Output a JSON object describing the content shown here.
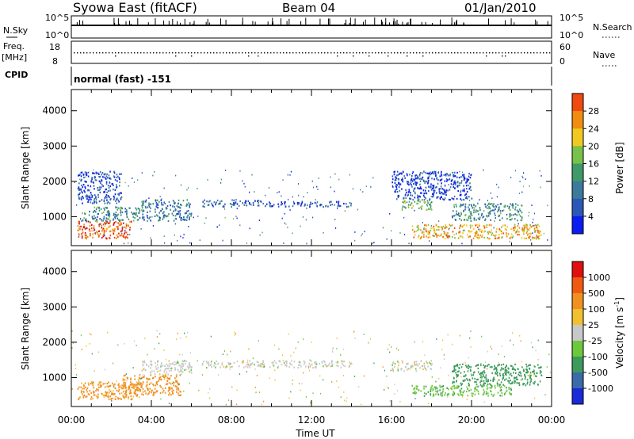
{
  "header": {
    "station": "Syowa East (fitACF)",
    "beam": "Beam 04",
    "date": "01/Jan/2010"
  },
  "strip_panels": {
    "nsky": {
      "label": "N.Sky",
      "tick_top": "10^5",
      "tick_bottom": "10^0"
    },
    "nsearch": {
      "label": "N.Search",
      "tick_top": "10^5",
      "tick_bottom": "10^0"
    },
    "freq": {
      "label_line1": "Freq.",
      "label_line2": "[MHz]",
      "tick_top": "18",
      "tick_bottom": "8",
      "range": [
        8,
        18
      ]
    },
    "nave": {
      "label": "Nave",
      "tick_top": "60",
      "tick_bottom": "0",
      "range": [
        0,
        60
      ]
    },
    "cpid": {
      "label": "CPID",
      "value": "normal (fast) -151"
    }
  },
  "colors": {
    "power_scale": [
      "#0a1cf0",
      "#2a57b8",
      "#3c7a9a",
      "#3f9a6a",
      "#77c24a",
      "#f0c820",
      "#f08c10",
      "#f04a10",
      "#e01010"
    ],
    "velocity_scale": [
      "#e01010",
      "#f05a10",
      "#f09020",
      "#f0c030",
      "#c8c8c8",
      "#6cc83c",
      "#3c9a5a",
      "#3a6aa8",
      "#1a2ad8"
    ],
    "frame": "#000000"
  },
  "chart_data": [
    {
      "type": "heatmap",
      "title": "",
      "xlabel": "Time UT",
      "ylabel": "Slant Range [km]",
      "xlim": [
        "00:00",
        "24:00"
      ],
      "ylim": [
        180,
        4600
      ],
      "x_ticks": [
        "00:00",
        "04:00",
        "08:00",
        "12:00",
        "16:00",
        "20:00",
        "00:00"
      ],
      "y_ticks": [
        1000,
        2000,
        3000,
        4000
      ],
      "colorbar": {
        "label": "Power [dB]",
        "ticks": [
          "4",
          "8",
          "12",
          "16",
          "20",
          "24",
          "28"
        ],
        "range": [
          0,
          30
        ]
      },
      "regions": [
        {
          "t": [
            0.3,
            3.0
          ],
          "r": [
            400,
            900
          ],
          "v": 25
        },
        {
          "t": [
            0.5,
            3.5
          ],
          "r": [
            900,
            1300
          ],
          "v": 10
        },
        {
          "t": [
            3.5,
            6.0
          ],
          "r": [
            900,
            1500
          ],
          "v": 8
        },
        {
          "t": [
            6.5,
            9.5
          ],
          "r": [
            1300,
            1500
          ],
          "v": 6
        },
        {
          "t": [
            9.5,
            14.0
          ],
          "r": [
            1300,
            1450
          ],
          "v": 5
        },
        {
          "t": [
            16.5,
            18.0
          ],
          "r": [
            1200,
            1500
          ],
          "v": 14
        },
        {
          "t": [
            17.0,
            23.5
          ],
          "r": [
            400,
            800
          ],
          "v": 20
        },
        {
          "t": [
            19.0,
            22.5
          ],
          "r": [
            900,
            1400
          ],
          "v": 10
        },
        {
          "t": [
            0.3,
            2.5
          ],
          "r": [
            1400,
            2300
          ],
          "v": 5
        },
        {
          "t": [
            16.0,
            20.0
          ],
          "r": [
            1500,
            2300
          ],
          "v": 4
        }
      ]
    },
    {
      "type": "heatmap",
      "title": "",
      "xlabel": "Time UT",
      "ylabel": "Slant Range [km]",
      "xlim": [
        "00:00",
        "24:00"
      ],
      "ylim": [
        180,
        4600
      ],
      "x_ticks": [
        "00:00",
        "04:00",
        "08:00",
        "12:00",
        "16:00",
        "20:00",
        "00:00"
      ],
      "y_ticks": [
        1000,
        2000,
        3000,
        4000
      ],
      "colorbar": {
        "label": "Velocity [m s^-1]",
        "ticks": [
          "1000",
          "500",
          "100",
          "25",
          "-25",
          "-100",
          "-500",
          "-1000"
        ]
      },
      "regions": [
        {
          "t": [
            0.3,
            3.5
          ],
          "r": [
            400,
            900
          ],
          "v": -150
        },
        {
          "t": [
            2.5,
            5.5
          ],
          "r": [
            500,
            1100
          ],
          "v": -300
        },
        {
          "t": [
            3.5,
            6.0
          ],
          "r": [
            1100,
            1500
          ],
          "v": 0
        },
        {
          "t": [
            6.5,
            14.0
          ],
          "r": [
            1300,
            1500
          ],
          "v": 0
        },
        {
          "t": [
            16.0,
            18.0
          ],
          "r": [
            1200,
            1500
          ],
          "v": 0
        },
        {
          "t": [
            17.0,
            22.0
          ],
          "r": [
            500,
            800
          ],
          "v": 80
        },
        {
          "t": [
            19.0,
            23.5
          ],
          "r": [
            800,
            1400
          ],
          "v": 200
        }
      ]
    }
  ],
  "axis": {
    "x_title": "Time UT",
    "y_title": "Slant Range [km]",
    "power_label": "Power [dB]",
    "velocity_label": "Velocity [m s",
    "velocity_sup": "-1",
    "velocity_end": "]"
  }
}
